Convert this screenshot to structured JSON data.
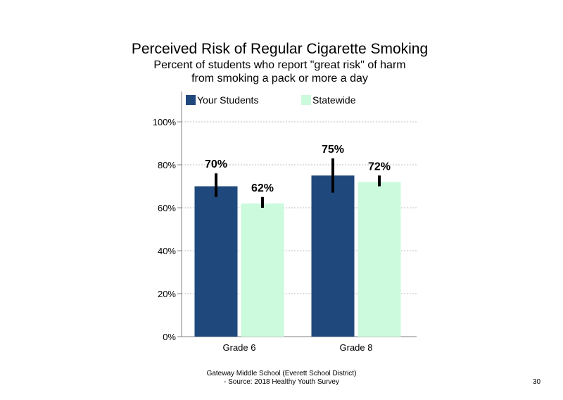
{
  "slide": {
    "title": "Perceived Risk of Regular Cigarette Smoking",
    "subtitle_line1": "Percent of students who report \"great risk\" of harm",
    "subtitle_line2": "from smoking a pack or more a day",
    "footer_line1": "Gateway Middle School (Everett School District)",
    "footer_line2": "- Source: 2018 Healthy Youth Survey",
    "page_number": "30"
  },
  "chart_data": {
    "type": "bar",
    "title": "Perceived Risk of Regular Cigarette Smoking",
    "categories": [
      "Grade 6",
      "Grade 8"
    ],
    "series": [
      {
        "name": "Your Students",
        "color": "#1f497d",
        "values": [
          70,
          75
        ],
        "labels": [
          "70%",
          "75%"
        ],
        "error_low": [
          65,
          67
        ],
        "error_high": [
          76,
          83
        ]
      },
      {
        "name": "Statewide",
        "color": "#ccfadc",
        "values": [
          62,
          72
        ],
        "labels": [
          "62%",
          "72%"
        ],
        "error_low": [
          60,
          70
        ],
        "error_high": [
          65,
          75
        ]
      }
    ],
    "y_ticks": [
      "0%",
      "20%",
      "40%",
      "60%",
      "80%",
      "100%"
    ],
    "ylim": [
      0,
      110
    ],
    "grid": true,
    "legend": "top"
  }
}
